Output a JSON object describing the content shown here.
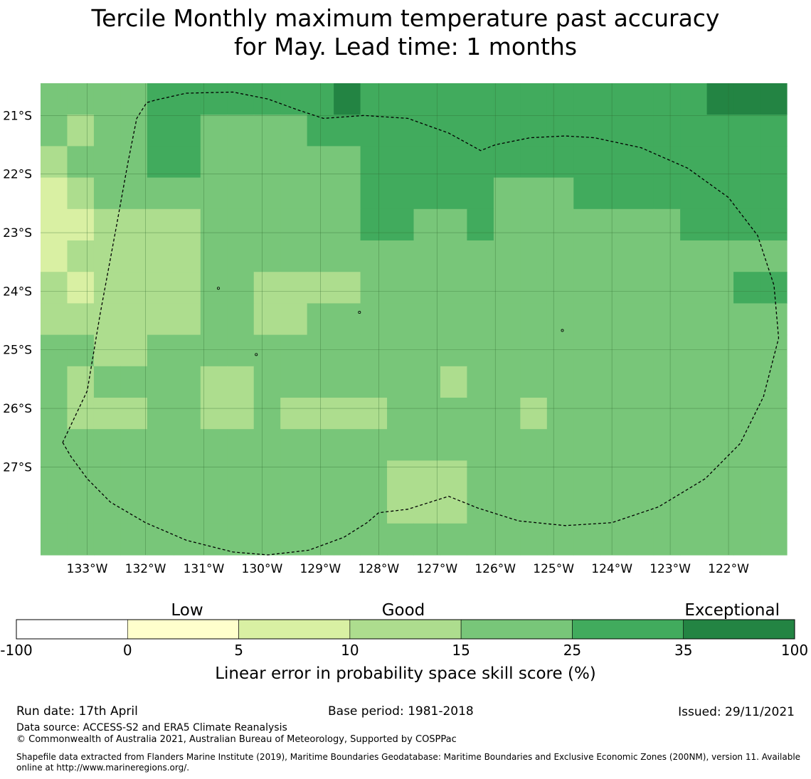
{
  "title_line1": "Tercile Monthly maximum temperature past accuracy",
  "title_line2": "for May. Lead time: 1 months",
  "chart_data": {
    "type": "heatmap",
    "x_ticks": [
      "133°W",
      "132°W",
      "131°W",
      "130°W",
      "129°W",
      "128°W",
      "127°W",
      "126°W",
      "125°W",
      "124°W",
      "123°W",
      "122°W"
    ],
    "y_ticks": [
      "21°S",
      "22°S",
      "23°S",
      "24°S",
      "25°S",
      "26°S",
      "27°S"
    ],
    "lon_range": [
      -133.8,
      -121.0
    ],
    "lat_range": [
      -28.5,
      -20.45
    ],
    "cell_size_deg": 0.833,
    "grid": true,
    "category_colors": {
      "1": "#ffffcc",
      "2": "#d9f0a3",
      "3": "#addd8e",
      "4": "#78c679",
      "5": "#41ab5d",
      "6": "#238443"
    },
    "cells": [
      [
        4,
        4,
        4,
        4,
        5,
        5,
        5,
        5,
        5,
        5,
        5,
        6,
        5,
        5,
        5,
        5,
        5,
        5,
        5,
        5,
        5,
        5,
        5,
        5,
        5,
        6,
        6,
        6
      ],
      [
        4,
        3,
        4,
        4,
        5,
        5,
        4,
        4,
        4,
        4,
        5,
        5,
        5,
        5,
        5,
        5,
        5,
        5,
        5,
        5,
        5,
        5,
        5,
        5,
        5,
        5,
        5,
        5
      ],
      [
        3,
        4,
        4,
        4,
        5,
        5,
        4,
        4,
        4,
        4,
        4,
        4,
        5,
        5,
        5,
        5,
        5,
        5,
        5,
        5,
        5,
        5,
        5,
        5,
        5,
        5,
        5,
        5
      ],
      [
        2,
        3,
        4,
        4,
        4,
        4,
        4,
        4,
        4,
        4,
        4,
        4,
        5,
        5,
        5,
        5,
        5,
        4,
        4,
        4,
        5,
        5,
        5,
        5,
        5,
        5,
        5,
        5
      ],
      [
        2,
        2,
        3,
        3,
        3,
        3,
        4,
        4,
        4,
        4,
        4,
        4,
        5,
        5,
        4,
        4,
        5,
        4,
        4,
        4,
        4,
        4,
        4,
        4,
        5,
        5,
        5,
        5
      ],
      [
        2,
        3,
        3,
        3,
        3,
        3,
        4,
        4,
        4,
        4,
        4,
        4,
        4,
        4,
        4,
        4,
        4,
        4,
        4,
        4,
        4,
        4,
        4,
        4,
        4,
        4,
        4,
        4
      ],
      [
        3,
        2,
        3,
        3,
        3,
        3,
        4,
        4,
        3,
        3,
        3,
        3,
        4,
        4,
        4,
        4,
        4,
        4,
        4,
        4,
        4,
        4,
        4,
        4,
        4,
        4,
        5,
        5
      ],
      [
        3,
        3,
        3,
        3,
        3,
        3,
        4,
        4,
        3,
        3,
        4,
        4,
        4,
        4,
        4,
        4,
        4,
        4,
        4,
        4,
        4,
        4,
        4,
        4,
        4,
        4,
        4,
        4
      ],
      [
        4,
        4,
        3,
        3,
        4,
        4,
        4,
        4,
        4,
        4,
        4,
        4,
        4,
        4,
        4,
        4,
        4,
        4,
        4,
        4,
        4,
        4,
        4,
        4,
        4,
        4,
        4,
        4
      ],
      [
        4,
        3,
        4,
        4,
        4,
        4,
        3,
        3,
        4,
        4,
        4,
        4,
        4,
        4,
        4,
        3,
        4,
        4,
        4,
        4,
        4,
        4,
        4,
        4,
        4,
        4,
        4,
        4
      ],
      [
        4,
        3,
        3,
        3,
        4,
        4,
        3,
        3,
        4,
        3,
        3,
        3,
        3,
        4,
        4,
        4,
        4,
        4,
        3,
        4,
        4,
        4,
        4,
        4,
        4,
        4,
        4,
        4
      ],
      [
        4,
        4,
        4,
        4,
        4,
        4,
        4,
        4,
        4,
        4,
        4,
        4,
        4,
        4,
        4,
        4,
        4,
        4,
        4,
        4,
        4,
        4,
        4,
        4,
        4,
        4,
        4,
        4
      ],
      [
        4,
        4,
        4,
        4,
        4,
        4,
        4,
        4,
        4,
        4,
        4,
        4,
        4,
        3,
        3,
        3,
        4,
        4,
        4,
        4,
        4,
        4,
        4,
        4,
        4,
        4,
        4,
        4
      ],
      [
        4,
        4,
        4,
        4,
        4,
        4,
        4,
        4,
        4,
        4,
        4,
        4,
        4,
        3,
        3,
        3,
        4,
        4,
        4,
        4,
        4,
        4,
        4,
        4,
        4,
        4,
        4,
        4
      ],
      [
        4,
        4,
        4,
        4,
        4,
        4,
        4,
        4,
        4,
        4,
        4,
        4,
        4,
        4,
        4,
        4,
        4,
        4,
        4,
        4,
        4,
        4,
        4,
        4,
        4,
        4,
        4,
        4
      ]
    ],
    "boundary_lonlat": [
      [
        -133.42,
        -26.58
      ],
      [
        -133.28,
        -26.82
      ],
      [
        -133.0,
        -27.2
      ],
      [
        -132.6,
        -27.6
      ],
      [
        -132.0,
        -27.95
      ],
      [
        -131.3,
        -28.25
      ],
      [
        -130.5,
        -28.45
      ],
      [
        -129.9,
        -28.5
      ],
      [
        -129.2,
        -28.42
      ],
      [
        -128.6,
        -28.2
      ],
      [
        -128.2,
        -27.95
      ],
      [
        -128.0,
        -27.78
      ],
      [
        -127.5,
        -27.72
      ],
      [
        -126.8,
        -27.5
      ],
      [
        -126.3,
        -27.7
      ],
      [
        -125.6,
        -27.92
      ],
      [
        -124.8,
        -28.0
      ],
      [
        -124.0,
        -27.95
      ],
      [
        -123.2,
        -27.68
      ],
      [
        -122.4,
        -27.2
      ],
      [
        -121.8,
        -26.6
      ],
      [
        -121.4,
        -25.8
      ],
      [
        -121.14,
        -24.8
      ],
      [
        -121.22,
        -23.9
      ],
      [
        -121.5,
        -23.05
      ],
      [
        -122.0,
        -22.4
      ],
      [
        -122.7,
        -21.9
      ],
      [
        -123.5,
        -21.55
      ],
      [
        -124.3,
        -21.38
      ],
      [
        -124.8,
        -21.35
      ],
      [
        -125.4,
        -21.38
      ],
      [
        -126.0,
        -21.5
      ],
      [
        -126.25,
        -21.6
      ],
      [
        -126.8,
        -21.3
      ],
      [
        -127.5,
        -21.05
      ],
      [
        -128.25,
        -21.0
      ],
      [
        -128.95,
        -21.05
      ],
      [
        -129.4,
        -20.9
      ],
      [
        -129.9,
        -20.72
      ],
      [
        -130.5,
        -20.6
      ],
      [
        -131.3,
        -20.62
      ],
      [
        -131.8,
        -20.73
      ],
      [
        -131.98,
        -20.78
      ],
      [
        -132.15,
        -21.05
      ],
      [
        -132.3,
        -21.8
      ],
      [
        -132.5,
        -22.9
      ],
      [
        -132.78,
        -24.4
      ],
      [
        -133.0,
        -25.7
      ],
      [
        -133.42,
        -26.58
      ]
    ],
    "islands_lonlat": [
      [
        -128.33,
        -24.36
      ],
      [
        -124.85,
        -24.67
      ],
      [
        -130.1,
        -25.08
      ],
      [
        -130.75,
        -23.95
      ]
    ],
    "colorbar": {
      "category_labels": [
        "Low",
        "Good",
        "Exceptional"
      ],
      "tick_labels": [
        "-100",
        "0",
        "5",
        "10",
        "15",
        "25",
        "35",
        "100"
      ],
      "colors": [
        "#ffffff",
        "#ffffcc",
        "#d9f0a3",
        "#addd8e",
        "#78c679",
        "#41ab5d",
        "#238443"
      ],
      "label": "Linear error in probability space skill score (%)"
    }
  },
  "footer": {
    "run_date": "Run date: 17th April",
    "base_period": "Base period: 1981-2018",
    "issued": "Issued: 29/11/2021",
    "data_source": "Data source: ACCESS-S2 and ERA5 Climate Reanalysis",
    "copyright": "© Commonwealth of Australia 2021, Australian Bureau of Meteorology, Supported by COSPPac",
    "shapefile": "Shapefile data extracted from Flanders Marine Institute (2019), Maritime Boundaries Geodatabase: Maritime Boundaries and Exclusive Economic Zones (200NM), version 11. Available online at http://www.marineregions.org/."
  }
}
